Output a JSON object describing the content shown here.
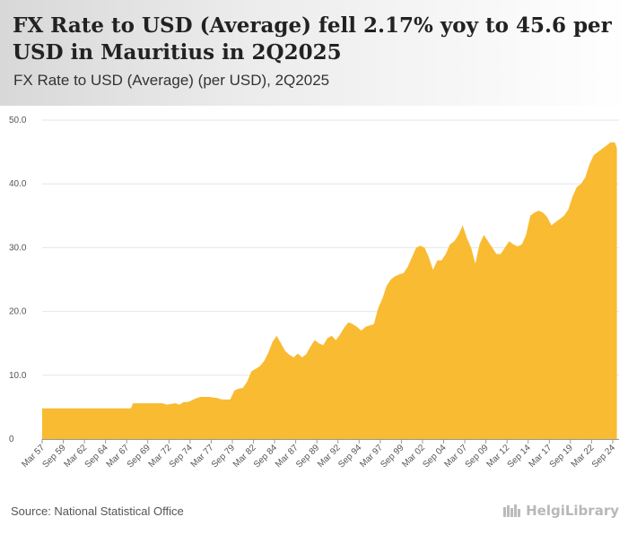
{
  "header": {
    "title": "FX Rate to USD (Average) fell 2.17% yoy to 45.6 per USD in Mauritius in 2Q2025",
    "subtitle": "FX Rate to USD (Average) (per USD), 2Q2025"
  },
  "footer": {
    "source": "Source: National Statistical Office",
    "brand": "HelgiLibrary"
  },
  "colors": {
    "area": "#f8bb32",
    "grid": "#e6e6e6",
    "axis": "#999999"
  },
  "chart_data": {
    "type": "area",
    "title": "FX Rate to USD (Average) (per USD), 2Q2025",
    "xlabel": "",
    "ylabel": "",
    "ylim": [
      0,
      50
    ],
    "y_ticks": [
      "0",
      "10.0",
      "20.0",
      "30.0",
      "40.0",
      "50.0"
    ],
    "x_ticks": [
      "Mar 57",
      "Sep 59",
      "Mar 62",
      "Sep 64",
      "Mar 67",
      "Sep 69",
      "Mar 72",
      "Sep 74",
      "Mar 77",
      "Sep 79",
      "Mar 82",
      "Sep 84",
      "Mar 87",
      "Sep 89",
      "Mar 92",
      "Sep 94",
      "Mar 97",
      "Sep 99",
      "Mar 02",
      "Sep 04",
      "Mar 07",
      "Sep 09",
      "Mar 12",
      "Sep 14",
      "Mar 17",
      "Sep 19",
      "Mar 22",
      "Sep 24"
    ],
    "grid": true,
    "series": [
      {
        "name": "FX Rate to USD (Average)",
        "x": [
          1957.25,
          1967.75,
          1968.0,
          1969.5,
          1970.5,
          1971.5,
          1972.0,
          1973.0,
          1973.5,
          1974.0,
          1974.5,
          1975.5,
          1976.0,
          1976.5,
          1977.0,
          1978.0,
          1978.5,
          1979.0,
          1979.5,
          1980.0,
          1980.5,
          1981.0,
          1981.5,
          1982.0,
          1982.5,
          1983.0,
          1983.5,
          1984.0,
          1984.5,
          1985.0,
          1985.5,
          1986.0,
          1986.5,
          1987.0,
          1987.5,
          1988.0,
          1988.5,
          1989.0,
          1989.5,
          1990.0,
          1990.5,
          1991.0,
          1991.5,
          1992.0,
          1992.5,
          1993.0,
          1993.5,
          1994.0,
          1994.5,
          1995.0,
          1995.5,
          1996.0,
          1996.5,
          1997.0,
          1997.5,
          1998.0,
          1998.5,
          1999.0,
          1999.5,
          2000.0,
          2000.5,
          2001.0,
          2001.5,
          2002.0,
          2002.5,
          2003.0,
          2003.5,
          2004.0,
          2004.5,
          2005.0,
          2005.5,
          2006.0,
          2006.5,
          2007.0,
          2007.5,
          2008.0,
          2008.5,
          2009.0,
          2009.5,
          2010.0,
          2010.5,
          2011.0,
          2011.5,
          2012.0,
          2012.5,
          2013.0,
          2013.5,
          2014.0,
          2014.5,
          2015.0,
          2015.5,
          2016.0,
          2016.5,
          2017.0,
          2017.5,
          2018.0,
          2018.5,
          2019.0,
          2019.5,
          2020.0,
          2020.5,
          2021.0,
          2021.5,
          2022.0,
          2022.5,
          2023.0,
          2023.5,
          2024.0,
          2024.5,
          2025.0,
          2025.25
        ],
        "values": [
          4.8,
          4.8,
          5.6,
          5.6,
          5.6,
          5.6,
          5.4,
          5.6,
          5.4,
          5.8,
          5.8,
          6.4,
          6.6,
          6.6,
          6.6,
          6.4,
          6.2,
          6.2,
          6.2,
          7.6,
          7.9,
          8.0,
          9.0,
          10.6,
          11.0,
          11.4,
          12.2,
          13.5,
          15.2,
          16.2,
          15.0,
          13.8,
          13.2,
          12.8,
          13.4,
          12.8,
          13.3,
          14.5,
          15.5,
          15.0,
          14.7,
          15.8,
          16.2,
          15.5,
          16.4,
          17.5,
          18.3,
          18.0,
          17.6,
          17.0,
          17.6,
          17.8,
          18.0,
          20.5,
          22.0,
          24.0,
          25.0,
          25.5,
          25.8,
          26.0,
          27.0,
          28.5,
          30.0,
          30.3,
          30.0,
          28.5,
          26.5,
          28.0,
          28.0,
          29.0,
          30.5,
          31.0,
          32.0,
          33.5,
          31.5,
          30.0,
          27.5,
          30.5,
          32.0,
          31.0,
          30.0,
          29.0,
          29.0,
          30.0,
          31.0,
          30.5,
          30.2,
          30.5,
          32.0,
          35.0,
          35.5,
          35.8,
          35.5,
          34.8,
          33.5,
          34.0,
          34.5,
          35.0,
          36.0,
          38.0,
          39.5,
          40.0,
          41.0,
          43.0,
          44.5,
          45.0,
          45.5,
          46.0,
          46.5,
          46.5,
          45.6
        ]
      }
    ]
  }
}
